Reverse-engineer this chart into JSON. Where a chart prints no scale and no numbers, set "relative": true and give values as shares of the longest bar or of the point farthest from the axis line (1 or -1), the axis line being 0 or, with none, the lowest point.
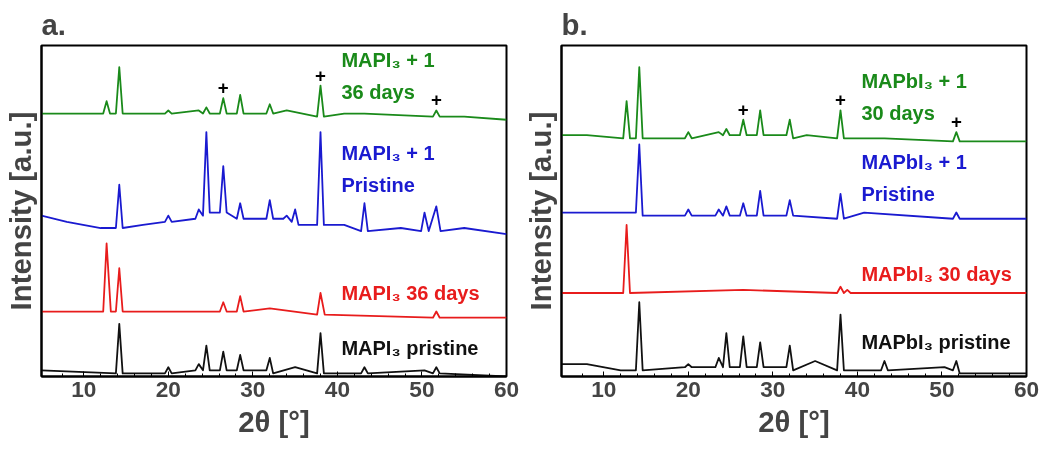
{
  "chart_data": [
    {
      "type": "line",
      "title": "a.",
      "xlabel": "2θ [°]",
      "ylabel": "Intensity [a.u.]",
      "relative": true,
      "xlim": [
        5,
        60
      ],
      "xticks": [
        10,
        20,
        30,
        40,
        50,
        60
      ],
      "tick_labels": "x",
      "grid": false,
      "series": [
        {
          "name": "MAPI₃ + 1\n36 days",
          "color": "#1a8a1a",
          "x": [
            5,
            12.3,
            12.7,
            13.1,
            13.8,
            14.2,
            14.6,
            19.6,
            20,
            20.4,
            23.6,
            24.1,
            24.5,
            24.9,
            26.1,
            26.5,
            26.9,
            28.1,
            28.5,
            28.9,
            31.6,
            32,
            32.4,
            34,
            37.6,
            38,
            38.4,
            40.8,
            43.2,
            51.3,
            51.7,
            52.1,
            55,
            60
          ],
          "values": [
            0.85,
            0.85,
            0.89,
            0.85,
            0.85,
            1.0,
            0.85,
            0.85,
            0.86,
            0.85,
            0.86,
            0.85,
            0.87,
            0.85,
            0.85,
            0.9,
            0.85,
            0.85,
            0.91,
            0.85,
            0.85,
            0.88,
            0.85,
            0.86,
            0.84,
            0.94,
            0.84,
            0.85,
            0.85,
            0.84,
            0.86,
            0.84,
            0.84,
            0.83
          ]
        },
        {
          "name": "MAPI₃ + 1\nPristine",
          "color": "#1a1ad0",
          "x": [
            5,
            8,
            12,
            13.8,
            14.2,
            14.6,
            17,
            19.6,
            20,
            20.4,
            23.2,
            23.6,
            24.1,
            24.5,
            24.9,
            26.1,
            26.5,
            26.9,
            28.1,
            28.5,
            28.9,
            31.6,
            32,
            32.4,
            33.6,
            34,
            34.6,
            35,
            35.4,
            37.6,
            38,
            38.4,
            40.8,
            42.8,
            43.2,
            43.6,
            47.5,
            49.9,
            50.3,
            50.8,
            51.7,
            52.2,
            55,
            60
          ],
          "values": [
            0.52,
            0.5,
            0.48,
            0.48,
            0.62,
            0.48,
            0.49,
            0.5,
            0.52,
            0.5,
            0.51,
            0.54,
            0.52,
            0.79,
            0.53,
            0.53,
            0.68,
            0.53,
            0.51,
            0.56,
            0.51,
            0.51,
            0.57,
            0.51,
            0.51,
            0.52,
            0.5,
            0.54,
            0.49,
            0.49,
            0.79,
            0.49,
            0.49,
            0.47,
            0.56,
            0.47,
            0.48,
            0.47,
            0.53,
            0.47,
            0.55,
            0.47,
            0.48,
            0.46
          ]
        },
        {
          "name": "MAPI₃ 36 days",
          "color": "#e81c1c",
          "x": [
            5,
            12.3,
            12.7,
            13.2,
            13.8,
            14.2,
            14.6,
            26.1,
            26.5,
            26.9,
            28.1,
            28.5,
            28.9,
            32,
            37.6,
            38,
            38.5,
            51.3,
            51.7,
            52.1,
            60
          ],
          "values": [
            0.21,
            0.21,
            0.43,
            0.21,
            0.21,
            0.35,
            0.21,
            0.21,
            0.24,
            0.21,
            0.21,
            0.26,
            0.21,
            0.22,
            0.2,
            0.27,
            0.2,
            0.19,
            0.21,
            0.19,
            0.19
          ]
        },
        {
          "name": "MAPI₃ pristine",
          "color": "#111111",
          "x": [
            5,
            13.8,
            14.2,
            14.6,
            19.6,
            20,
            20.4,
            23.2,
            23.6,
            24.1,
            24.5,
            24.9,
            26.1,
            26.5,
            26.9,
            28.1,
            28.5,
            28.9,
            31.6,
            32,
            32.4,
            35,
            37.6,
            38,
            38.4,
            42.8,
            43.2,
            43.6,
            50.3,
            51.3,
            51.7,
            52.1,
            60
          ],
          "values": [
            0.02,
            0.01,
            0.17,
            0.01,
            0.01,
            0.03,
            0.01,
            0.02,
            0.04,
            0.02,
            0.1,
            0.02,
            0.02,
            0.08,
            0.02,
            0.02,
            0.07,
            0.02,
            0.02,
            0.06,
            0.01,
            0.03,
            0.01,
            0.14,
            0.01,
            0.01,
            0.03,
            0.01,
            0.02,
            0.01,
            0.03,
            0.01,
            0.0
          ]
        }
      ],
      "annotations": [
        {
          "text": "+",
          "x": 26.5,
          "y": 0.9
        },
        {
          "text": "+",
          "x": 38,
          "y": 0.94
        },
        {
          "text": "+",
          "x": 51.7,
          "y": 0.86
        }
      ]
    },
    {
      "type": "line",
      "title": "b.",
      "xlabel": "2θ [°]",
      "ylabel": "Intensity [a.u.]",
      "relative": true,
      "xlim": [
        5,
        60
      ],
      "xticks": [
        10,
        20,
        30,
        40,
        50,
        60
      ],
      "tick_labels": "x",
      "grid": false,
      "series": [
        {
          "name": "MAPbI₃ + 1\n30 days",
          "color": "#1a8a1a",
          "x": [
            5,
            8,
            12.3,
            12.7,
            13.1,
            13.8,
            14.2,
            14.6,
            19.6,
            20,
            20.4,
            23.6,
            24.1,
            24.5,
            24.9,
            26.1,
            26.5,
            26.9,
            28.1,
            28.5,
            28.9,
            31.6,
            32,
            32.4,
            34,
            37.6,
            38,
            38.4,
            40.8,
            43.2,
            51.3,
            51.7,
            52.1,
            60
          ],
          "values": [
            0.78,
            0.78,
            0.77,
            0.89,
            0.77,
            0.77,
            1.0,
            0.77,
            0.77,
            0.79,
            0.77,
            0.79,
            0.78,
            0.8,
            0.78,
            0.78,
            0.83,
            0.78,
            0.78,
            0.86,
            0.78,
            0.78,
            0.83,
            0.77,
            0.78,
            0.77,
            0.86,
            0.77,
            0.77,
            0.77,
            0.76,
            0.79,
            0.76,
            0.76
          ]
        },
        {
          "name": "MAPbI₃ + 1\nPristine",
          "color": "#1a1ad0",
          "x": [
            5,
            13.8,
            14.2,
            14.6,
            19.6,
            20,
            20.4,
            23.2,
            23.6,
            24.1,
            24.5,
            24.9,
            26.1,
            26.5,
            26.9,
            28.1,
            28.5,
            28.9,
            31.6,
            32,
            32.4,
            37.6,
            38,
            38.4,
            40.8,
            51.3,
            51.7,
            52.1,
            60
          ],
          "values": [
            0.53,
            0.53,
            0.75,
            0.52,
            0.52,
            0.54,
            0.52,
            0.52,
            0.54,
            0.52,
            0.55,
            0.52,
            0.52,
            0.56,
            0.52,
            0.52,
            0.6,
            0.52,
            0.52,
            0.57,
            0.52,
            0.51,
            0.59,
            0.51,
            0.53,
            0.51,
            0.53,
            0.51,
            0.51
          ]
        },
        {
          "name": "MAPbI₃ 30 days",
          "color": "#e81c1c",
          "x": [
            5,
            12.3,
            12.7,
            13.1,
            26.5,
            37.6,
            38,
            38.4,
            38.8,
            39.2,
            60
          ],
          "values": [
            0.27,
            0.27,
            0.49,
            0.27,
            0.28,
            0.27,
            0.29,
            0.27,
            0.28,
            0.27,
            0.27
          ]
        },
        {
          "name": "MAPbI₃ pristine",
          "color": "#111111",
          "x": [
            5,
            8,
            12,
            13.8,
            14.2,
            14.6,
            19.6,
            20,
            20.4,
            23.2,
            23.6,
            24.1,
            24.5,
            24.9,
            26.1,
            26.5,
            26.9,
            28.1,
            28.5,
            28.9,
            31.6,
            32,
            32.4,
            35,
            37.6,
            38,
            38.4,
            42.8,
            43.2,
            43.6,
            50.3,
            51.3,
            51.7,
            52.1,
            60
          ],
          "values": [
            0.04,
            0.04,
            0.02,
            0.02,
            0.24,
            0.02,
            0.03,
            0.04,
            0.03,
            0.03,
            0.06,
            0.03,
            0.14,
            0.03,
            0.03,
            0.13,
            0.03,
            0.03,
            0.11,
            0.03,
            0.03,
            0.1,
            0.02,
            0.05,
            0.02,
            0.2,
            0.02,
            0.02,
            0.05,
            0.02,
            0.03,
            0.02,
            0.05,
            0.01,
            0.01
          ]
        }
      ],
      "annotations": [
        {
          "text": "+",
          "x": 26.5,
          "y": 0.83
        },
        {
          "text": "+",
          "x": 38,
          "y": 0.86
        },
        {
          "text": "+",
          "x": 51.7,
          "y": 0.79
        }
      ]
    }
  ]
}
